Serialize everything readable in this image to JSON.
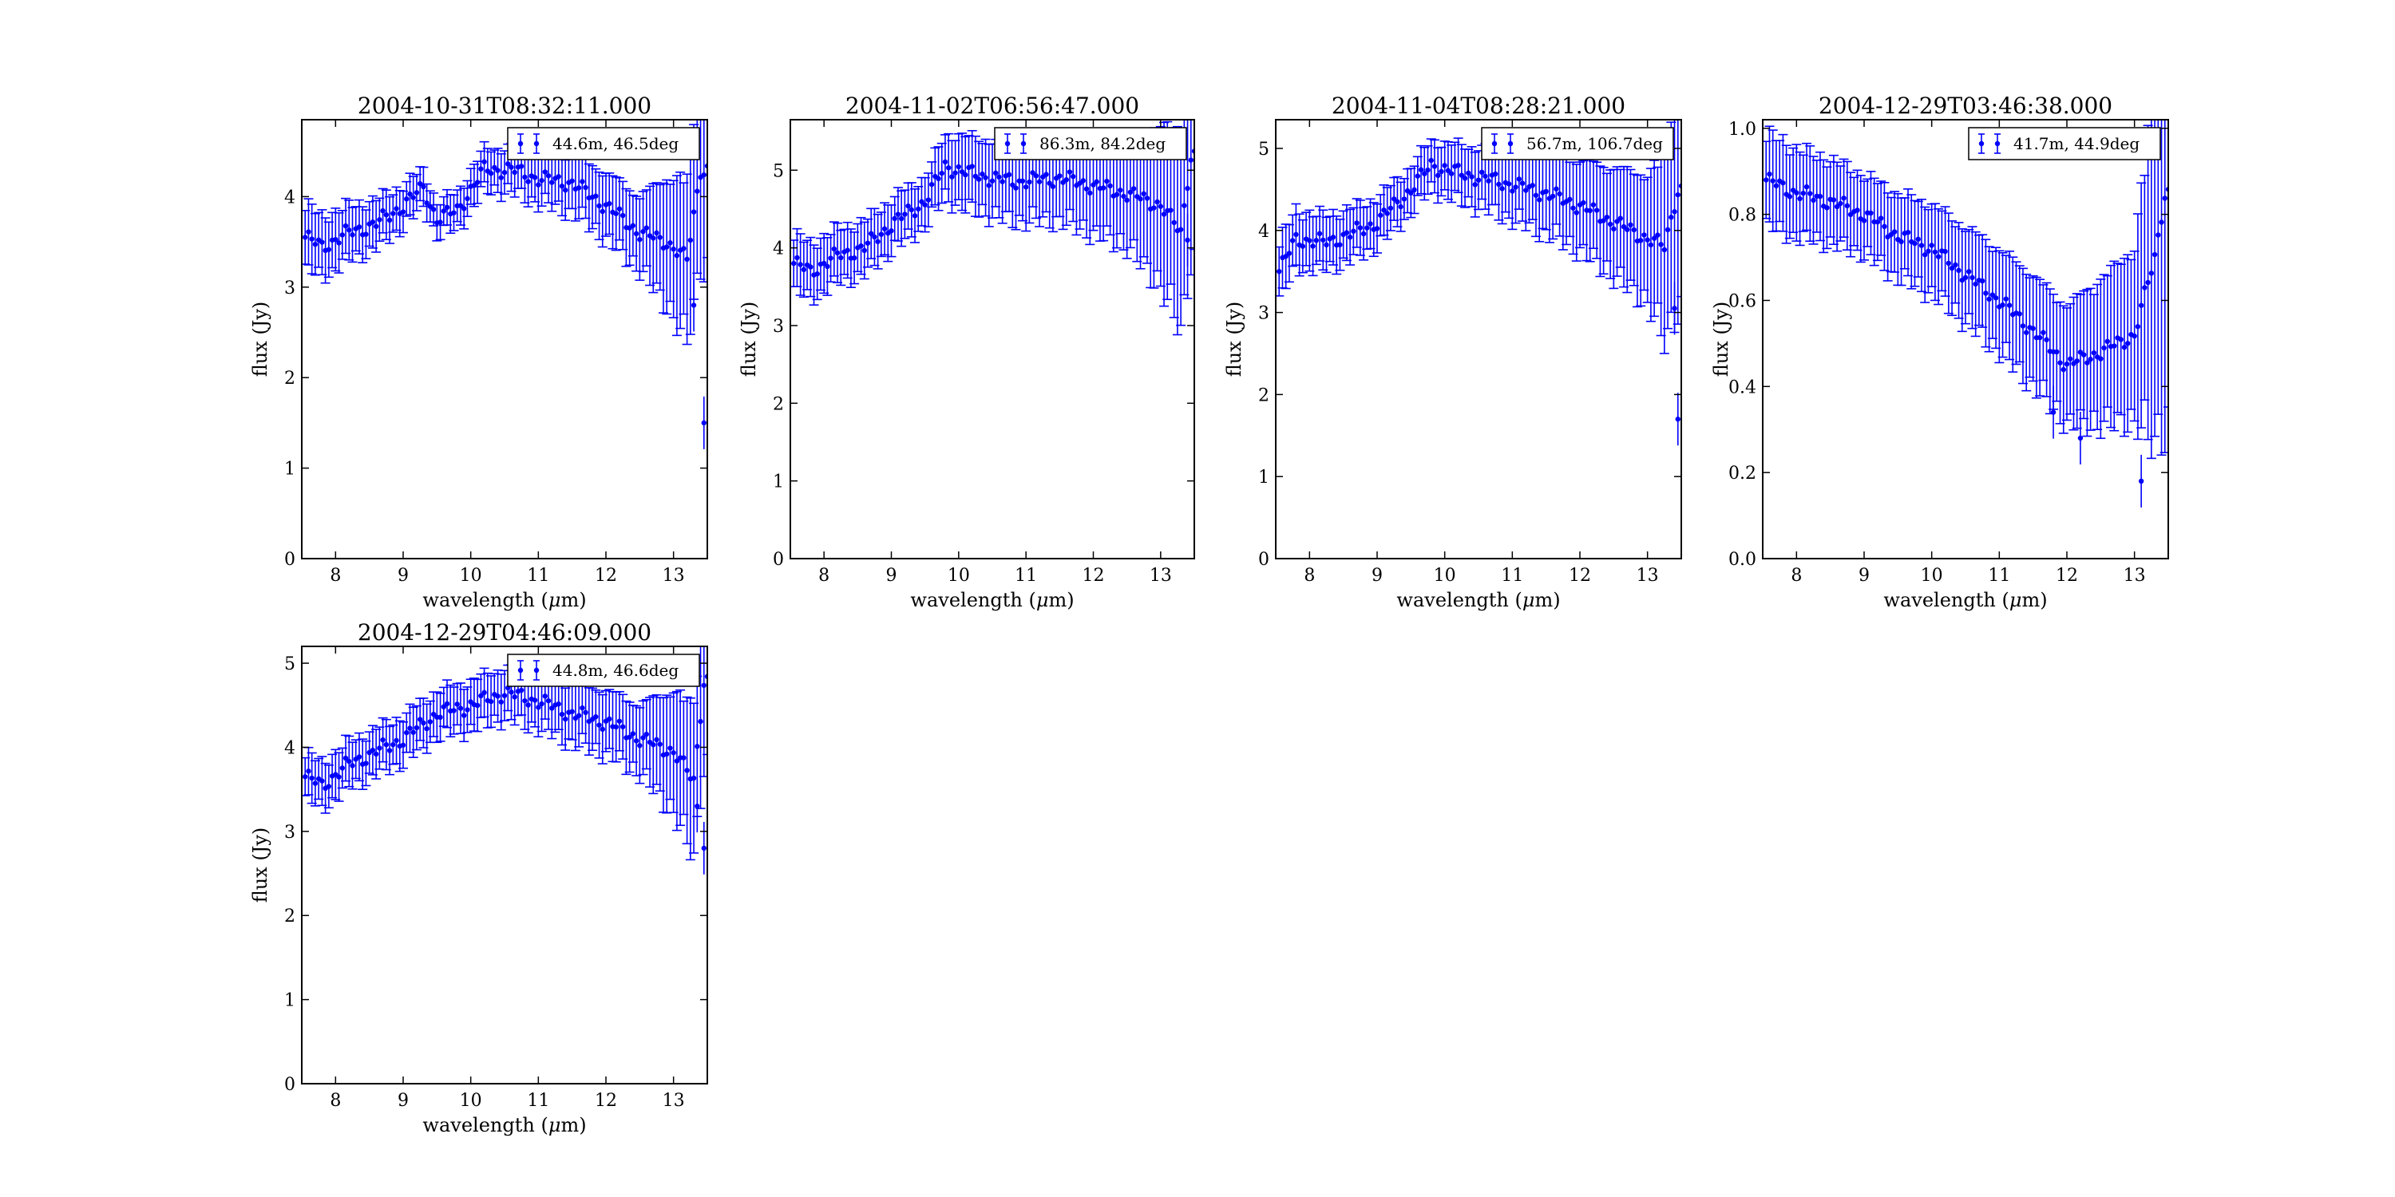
{
  "figure": {
    "x_label_prefix": "wavelength (",
    "x_label_mu": "μ",
    "x_label_suffix": "m)",
    "y_label": "flux (Jy)",
    "series_color": "#0000ff"
  },
  "chart_data": [
    {
      "type": "scatter",
      "title": "2004-10-31T08:32:11.000",
      "legend": "44.6m, 46.5deg",
      "legend_position": "top-right",
      "xlabel": "wavelength (μm)",
      "ylabel": "flux (Jy)",
      "xlim": [
        7.5,
        13.5
      ],
      "ylim": [
        0,
        4.85
      ],
      "xticks": [
        8,
        9,
        10,
        11,
        12,
        13
      ],
      "yticks": [
        0,
        1,
        2,
        3,
        4
      ],
      "ytick_labels": [
        "0",
        "1",
        "2",
        "3",
        "4"
      ],
      "grid": false,
      "error_bars": true,
      "anchors": [
        [
          7.55,
          3.55
        ],
        [
          7.8,
          3.45
        ],
        [
          8.2,
          3.6
        ],
        [
          8.6,
          3.7
        ],
        [
          9.0,
          3.9
        ],
        [
          9.3,
          4.1
        ],
        [
          9.5,
          3.75
        ],
        [
          9.8,
          3.85
        ],
        [
          10.2,
          4.3
        ],
        [
          10.6,
          4.3
        ],
        [
          11.0,
          4.2
        ],
        [
          11.5,
          4.15
        ],
        [
          12.0,
          3.9
        ],
        [
          12.5,
          3.6
        ],
        [
          12.9,
          3.5
        ],
        [
          13.2,
          3.3
        ],
        [
          13.4,
          4.3
        ]
      ],
      "error_anchors": [
        [
          7.5,
          0.4
        ],
        [
          9.5,
          0.2
        ],
        [
          11.0,
          0.3
        ],
        [
          12.5,
          0.45
        ],
        [
          13.45,
          1.2
        ]
      ],
      "outliers": [
        [
          13.3,
          2.8
        ],
        [
          13.45,
          1.5
        ]
      ]
    },
    {
      "type": "scatter",
      "title": "2004-11-02T06:56:47.000",
      "legend": "86.3m, 84.2deg",
      "legend_position": "top-right",
      "xlabel": "wavelength (μm)",
      "ylabel": "flux (Jy)",
      "xlim": [
        7.5,
        13.5
      ],
      "ylim": [
        0,
        5.65
      ],
      "xticks": [
        8,
        9,
        10,
        11,
        12,
        13
      ],
      "yticks": [
        0,
        1,
        2,
        3,
        4,
        5
      ],
      "ytick_labels": [
        "0",
        "1",
        "2",
        "3",
        "4",
        "5"
      ],
      "grid": false,
      "error_bars": true,
      "anchors": [
        [
          7.55,
          3.8
        ],
        [
          7.8,
          3.7
        ],
        [
          8.2,
          3.9
        ],
        [
          8.6,
          4.0
        ],
        [
          9.0,
          4.3
        ],
        [
          9.5,
          4.6
        ],
        [
          9.8,
          5.05
        ],
        [
          10.2,
          4.95
        ],
        [
          10.8,
          4.85
        ],
        [
          11.5,
          4.9
        ],
        [
          12.0,
          4.8
        ],
        [
          12.5,
          4.7
        ],
        [
          13.0,
          4.55
        ],
        [
          13.3,
          4.2
        ],
        [
          13.45,
          5.2
        ]
      ],
      "error_anchors": [
        [
          7.5,
          0.4
        ],
        [
          9.5,
          0.35
        ],
        [
          10.0,
          0.5
        ],
        [
          11.5,
          0.6
        ],
        [
          12.5,
          0.75
        ],
        [
          13.45,
          1.5
        ]
      ],
      "outliers": [
        [
          13.4,
          4.1
        ]
      ]
    },
    {
      "type": "scatter",
      "title": "2004-11-04T08:28:21.000",
      "legend": "56.7m, 106.7deg",
      "legend_position": "top-right",
      "xlabel": "wavelength (μm)",
      "ylabel": "flux (Jy)",
      "xlim": [
        7.5,
        13.5
      ],
      "ylim": [
        0,
        5.35
      ],
      "xticks": [
        8,
        9,
        10,
        11,
        12,
        13
      ],
      "yticks": [
        0,
        1,
        2,
        3,
        4,
        5
      ],
      "ytick_labels": [
        "0",
        "1",
        "2",
        "3",
        "4",
        "5"
      ],
      "grid": false,
      "error_bars": true,
      "anchors": [
        [
          7.55,
          3.5
        ],
        [
          7.8,
          3.9
        ],
        [
          8.2,
          3.85
        ],
        [
          8.6,
          3.95
        ],
        [
          9.0,
          4.1
        ],
        [
          9.5,
          4.5
        ],
        [
          9.8,
          4.8
        ],
        [
          10.2,
          4.7
        ],
        [
          10.8,
          4.6
        ],
        [
          11.5,
          4.45
        ],
        [
          12.0,
          4.3
        ],
        [
          12.5,
          4.1
        ],
        [
          13.0,
          3.9
        ],
        [
          13.25,
          3.8
        ],
        [
          13.45,
          4.5
        ]
      ],
      "error_anchors": [
        [
          7.5,
          0.4
        ],
        [
          9.5,
          0.3
        ],
        [
          10.5,
          0.4
        ],
        [
          12.0,
          0.6
        ],
        [
          13.0,
          0.85
        ],
        [
          13.45,
          1.6
        ]
      ],
      "outliers": [
        [
          13.4,
          3.05
        ],
        [
          13.45,
          1.7
        ]
      ]
    },
    {
      "type": "scatter",
      "title": "2004-12-29T03:46:38.000",
      "legend": "41.7m, 44.9deg",
      "legend_position": "top-right",
      "xlabel": "wavelength (μm)",
      "ylabel": "flux (Jy)",
      "xlim": [
        7.5,
        13.5
      ],
      "ylim": [
        0,
        1.02
      ],
      "xticks": [
        8,
        9,
        10,
        11,
        12,
        13
      ],
      "yticks": [
        0,
        0.2,
        0.4,
        0.6,
        0.8,
        1.0
      ],
      "ytick_labels": [
        "0.0",
        "0.2",
        "0.4",
        "0.6",
        "0.8",
        "1.0"
      ],
      "grid": false,
      "error_bars": true,
      "anchors": [
        [
          7.55,
          0.88
        ],
        [
          8.0,
          0.85
        ],
        [
          8.5,
          0.83
        ],
        [
          9.0,
          0.8
        ],
        [
          9.5,
          0.75
        ],
        [
          10.0,
          0.72
        ],
        [
          10.5,
          0.66
        ],
        [
          11.0,
          0.6
        ],
        [
          11.5,
          0.53
        ],
        [
          12.0,
          0.45
        ],
        [
          12.5,
          0.48
        ],
        [
          13.0,
          0.52
        ],
        [
          13.3,
          0.7
        ],
        [
          13.45,
          0.85
        ]
      ],
      "error_anchors": [
        [
          7.5,
          0.12
        ],
        [
          9.0,
          0.1
        ],
        [
          10.5,
          0.12
        ],
        [
          12.0,
          0.15
        ],
        [
          13.0,
          0.22
        ],
        [
          13.45,
          0.6
        ]
      ],
      "outliers": [
        [
          11.8,
          0.34
        ],
        [
          12.2,
          0.28
        ],
        [
          13.1,
          0.18
        ]
      ]
    },
    {
      "type": "scatter",
      "title": "2004-12-29T04:46:09.000",
      "legend": "44.8m, 46.6deg",
      "legend_position": "top-right",
      "xlabel": "wavelength (μm)",
      "ylabel": "flux (Jy)",
      "xlim": [
        7.5,
        13.5
      ],
      "ylim": [
        0,
        5.2
      ],
      "xticks": [
        8,
        9,
        10,
        11,
        12,
        13
      ],
      "yticks": [
        0,
        1,
        2,
        3,
        4,
        5
      ],
      "ytick_labels": [
        "0",
        "1",
        "2",
        "3",
        "4",
        "5"
      ],
      "grid": false,
      "error_bars": true,
      "anchors": [
        [
          7.55,
          3.65
        ],
        [
          7.8,
          3.55
        ],
        [
          8.2,
          3.8
        ],
        [
          8.6,
          3.95
        ],
        [
          9.0,
          4.1
        ],
        [
          9.5,
          4.4
        ],
        [
          10.0,
          4.5
        ],
        [
          10.5,
          4.65
        ],
        [
          11.0,
          4.55
        ],
        [
          11.5,
          4.4
        ],
        [
          12.0,
          4.3
        ],
        [
          12.5,
          4.1
        ],
        [
          13.0,
          3.95
        ],
        [
          13.3,
          3.6
        ],
        [
          13.45,
          4.8
        ]
      ],
      "error_anchors": [
        [
          7.5,
          0.3
        ],
        [
          9.5,
          0.3
        ],
        [
          11.0,
          0.35
        ],
        [
          12.5,
          0.45
        ],
        [
          13.45,
          1.1
        ]
      ],
      "outliers": [
        [
          13.35,
          3.3
        ],
        [
          13.45,
          2.8
        ]
      ]
    }
  ]
}
